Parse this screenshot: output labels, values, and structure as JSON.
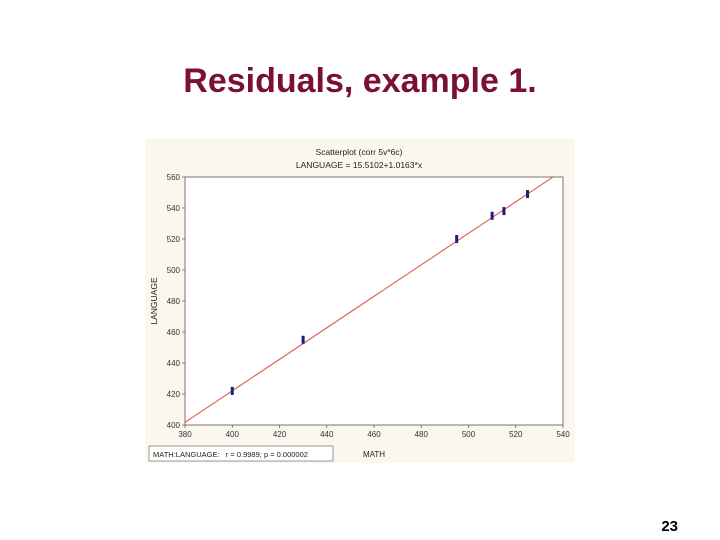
{
  "slide": {
    "title": "Residuals, example 1.",
    "page_number": "23"
  },
  "chart_data": {
    "type": "scatter",
    "title": "Scatterplot (corr 5v*6c)",
    "subtitle": "LANGUAGE = 15.5102+1.0163*x",
    "xlabel": "MATH",
    "ylabel": "LANGUAGE",
    "xlim": [
      380,
      540
    ],
    "ylim": [
      400,
      560
    ],
    "x_ticks": [
      380,
      400,
      420,
      440,
      460,
      480,
      500,
      520,
      540
    ],
    "y_ticks": [
      400,
      420,
      440,
      460,
      480,
      500,
      520,
      540,
      560
    ],
    "grid": false,
    "legend": "MATH:LANGUAGE:   r = 0.9989; p = 0.000002",
    "legend_position": "bottom-left",
    "regression": {
      "intercept": 15.5102,
      "slope": 1.0163,
      "color": "#e2463c"
    },
    "point_color": "#1a1f7a",
    "points": [
      {
        "x": 400,
        "y": 422
      },
      {
        "x": 430,
        "y": 455
      },
      {
        "x": 495,
        "y": 520
      },
      {
        "x": 510,
        "y": 535
      },
      {
        "x": 515,
        "y": 538
      },
      {
        "x": 525,
        "y": 549
      }
    ]
  }
}
